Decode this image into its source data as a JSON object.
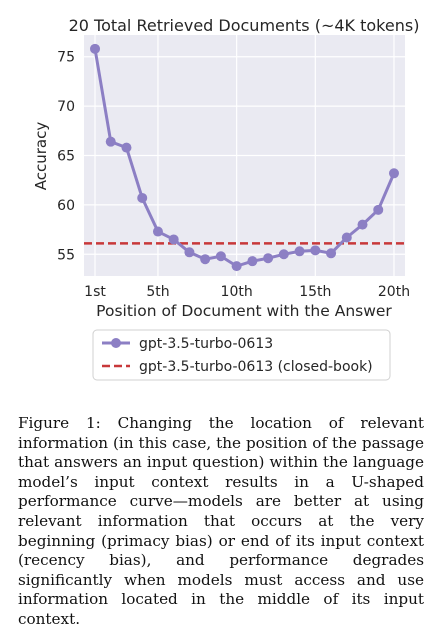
{
  "chart_data": {
    "type": "line",
    "title": "20 Total Retrieved Documents (~4K tokens)",
    "xlabel": "Position of Document with the Answer",
    "ylabel": "Accuracy",
    "x": [
      1,
      2,
      3,
      4,
      5,
      6,
      7,
      8,
      9,
      10,
      11,
      12,
      13,
      14,
      15,
      16,
      17,
      18,
      19,
      20
    ],
    "xticks": [
      1,
      5,
      10,
      15,
      20
    ],
    "xtick_labels": [
      "1st",
      "5th",
      "10th",
      "15th",
      "20th"
    ],
    "yticks": [
      55,
      60,
      65,
      70,
      75
    ],
    "xlim": [
      0.3,
      20.7
    ],
    "ylim": [
      52.8,
      77.2
    ],
    "grid": true,
    "legend_position": "below",
    "series": [
      {
        "name": "gpt-3.5-turbo-0613",
        "values": [
          75.8,
          66.4,
          65.8,
          60.7,
          57.3,
          56.5,
          55.2,
          54.5,
          54.8,
          53.8,
          54.3,
          54.6,
          55.0,
          55.3,
          55.4,
          55.1,
          56.7,
          58.0,
          59.5,
          63.2
        ],
        "color": "#8c7fc4",
        "style": "solid",
        "marker": "circle"
      },
      {
        "name": "gpt-3.5-turbo-0613 (closed-book)",
        "constant": 56.1,
        "color": "#c8383a",
        "style": "dashed"
      }
    ],
    "background": "#eaeaf2"
  },
  "caption": "Figure 1: Changing the location of relevant information (in this case, the position of the passage that answers an input question) within the language model’s input context results in a U-shaped performance curve—models are better at using relevant information that occurs at the very beginning (primacy bias) or end of its input context (recency bias), and performance degrades significantly when models must access and use information located in the middle of its input context."
}
